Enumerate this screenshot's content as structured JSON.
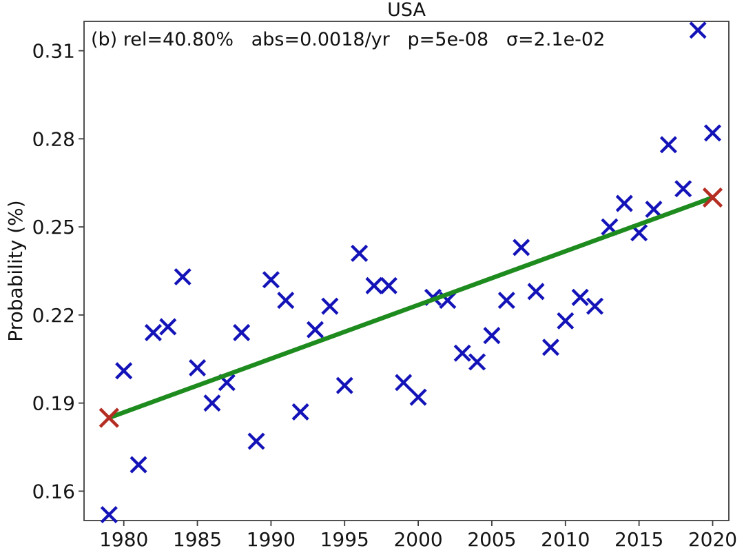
{
  "figure": {
    "title": "USA",
    "ylabel": "Probability (%)",
    "annotation": {
      "full": "(b) rel=40.80%   abs=0.0018/yr   p=5e-08   σ=2.1e-02",
      "panel": "(b)",
      "rel": "40.80%",
      "abs": "0.0018/yr",
      "p": "5e-08",
      "sigma": "2.1e-02"
    }
  },
  "chart_data": {
    "type": "scatter",
    "title": "USA",
    "xlabel": "",
    "ylabel": "Probability (%)",
    "marker": "x",
    "marker_color": "#1313b8",
    "grid": false,
    "legend": null,
    "x": [
      1979,
      1980,
      1981,
      1982,
      1983,
      1984,
      1985,
      1986,
      1987,
      1988,
      1989,
      1990,
      1991,
      1992,
      1993,
      1994,
      1995,
      1996,
      1997,
      1998,
      1999,
      2000,
      2001,
      2002,
      2003,
      2004,
      2005,
      2006,
      2007,
      2008,
      2009,
      2010,
      2011,
      2012,
      2013,
      2014,
      2015,
      2016,
      2017,
      2018,
      2019,
      2020
    ],
    "y": [
      0.152,
      0.201,
      0.169,
      0.214,
      0.216,
      0.233,
      0.202,
      0.19,
      0.197,
      0.214,
      0.177,
      0.232,
      0.225,
      0.187,
      0.215,
      0.223,
      0.196,
      0.241,
      0.23,
      0.23,
      0.197,
      0.192,
      0.226,
      0.225,
      0.207,
      0.204,
      0.213,
      0.225,
      0.243,
      0.228,
      0.209,
      0.218,
      0.226,
      0.223,
      0.25,
      0.258,
      0.248,
      0.256,
      0.278,
      0.263,
      0.317,
      0.282
    ],
    "trend": {
      "x": [
        1979,
        2020
      ],
      "y": [
        0.185,
        0.26
      ],
      "color": "#1e8b1e",
      "endpoint_marker": "x",
      "endpoint_color": "#b52e24",
      "slope_per_year": 0.0018
    },
    "xticks": [
      1980,
      1985,
      1990,
      1995,
      2000,
      2005,
      2010,
      2015,
      2020
    ],
    "yticks": [
      0.16,
      0.19,
      0.22,
      0.25,
      0.28,
      0.31
    ],
    "xlim": [
      1977.3,
      2021.1
    ],
    "ylim": [
      0.15,
      0.32
    ]
  },
  "colors": {
    "background": "#ffffff",
    "marker_blue": "#1313b8",
    "trend_green": "#1e8b1e",
    "endpoint_red": "#b52e24",
    "axis": "#3c3c3c",
    "text": "#141414"
  }
}
